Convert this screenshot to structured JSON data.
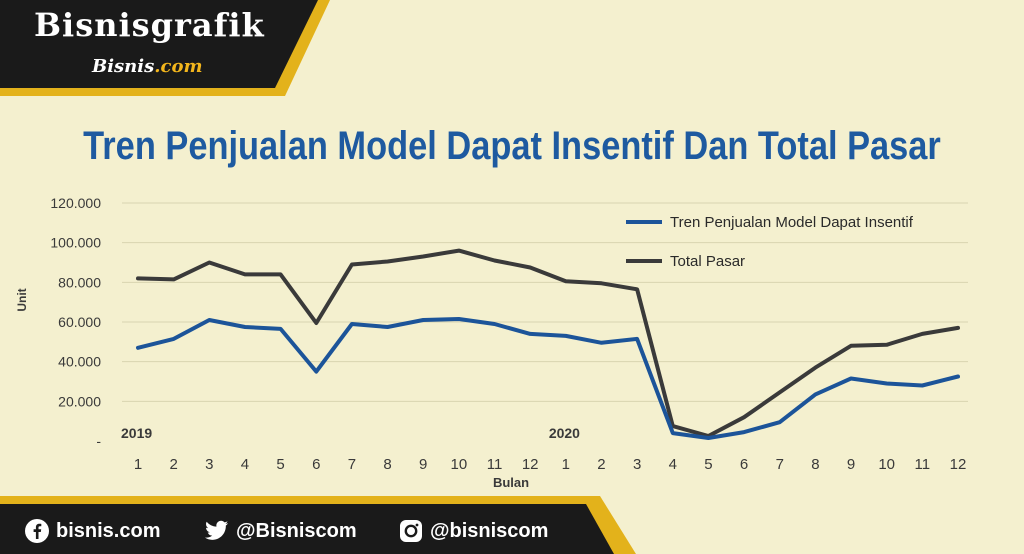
{
  "brand": {
    "title": "Bisnisgrafik",
    "sub_main": "Bisnis",
    "sub_tld": ".com"
  },
  "title": "Tren Penjualan Model Dapat Insentif Dan Total Pasar",
  "chart_data": {
    "type": "line",
    "title": "Tren Penjualan Model Dapat Insentif Dan Total Pasar",
    "xlabel": "Bulan",
    "ylabel": "Unit",
    "ylim": [
      0,
      120000
    ],
    "yticks": [
      "-",
      "20.000",
      "40.000",
      "60.000",
      "80.000",
      "100.000",
      "120.000"
    ],
    "categories": [
      "1",
      "2",
      "3",
      "4",
      "5",
      "6",
      "7",
      "8",
      "9",
      "10",
      "11",
      "12",
      "1",
      "2",
      "3",
      "4",
      "5",
      "6",
      "7",
      "8",
      "9",
      "10",
      "11",
      "12"
    ],
    "year_labels": [
      {
        "label": "2019",
        "index": 0
      },
      {
        "label": "2020",
        "index": 12
      }
    ],
    "grid": true,
    "legend_position": "top-right",
    "series": [
      {
        "name": "Tren Penjualan Model Dapat Insentif",
        "color": "#1c5499",
        "values": [
          47000,
          51500,
          61000,
          57500,
          56500,
          35000,
          59000,
          57500,
          61000,
          61500,
          59000,
          54000,
          53000,
          49500,
          51500,
          4000,
          1500,
          4500,
          9500,
          23500,
          31500,
          29000,
          28000,
          32500
        ]
      },
      {
        "name": "Total Pasar",
        "color": "#3a3a3a",
        "values": [
          82000,
          81500,
          90000,
          84000,
          84000,
          59500,
          89000,
          90500,
          93000,
          96000,
          91000,
          87500,
          80500,
          79500,
          76500,
          7500,
          2500,
          12000,
          24500,
          37000,
          48000,
          48500,
          54000,
          57000
        ]
      }
    ]
  },
  "footer": {
    "facebook": "bisnis.com",
    "twitter": "@Bisniscom",
    "instagram": "@bisniscom"
  },
  "colors": {
    "background": "#f4f0cf",
    "dark_band": "#1a1a1a",
    "gold_stripe": "#e3b21b",
    "title_blue": "#1e5aa0"
  },
  "icons": [
    "facebook-icon",
    "twitter-icon",
    "instagram-icon"
  ]
}
